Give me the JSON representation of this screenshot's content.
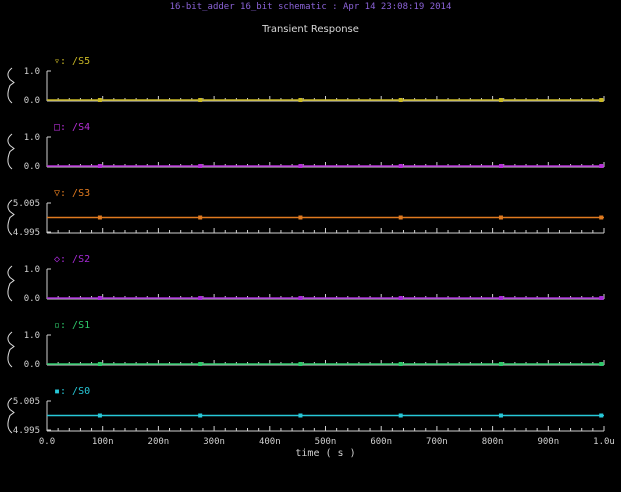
{
  "window": {
    "title": "16-bit_adder 16_bit schematic : Apr 14 23:08:19 2014",
    "subtitle": "Transient Response"
  },
  "colors": {
    "background": "#000000",
    "axis": "#d0d0d0",
    "title": "#8b63d8"
  },
  "chart_data": {
    "type": "line",
    "title": "Transient Response",
    "xlabel": "time ( s )",
    "x_ticks": [
      "0.0",
      "100n",
      "200n",
      "300n",
      "400n",
      "500n",
      "600n",
      "700n",
      "800n",
      "900n",
      "1.0u"
    ],
    "xlim": [
      0,
      1e-06
    ],
    "grid": false,
    "series": [
      {
        "name": "/S5",
        "marker_glyph": "▿",
        "color": "#c9b825",
        "y_ticks": [
          "1.0",
          "0.0"
        ],
        "ylim": [
          0,
          1
        ],
        "x": [
          0,
          1e-06
        ],
        "values": [
          0,
          0
        ]
      },
      {
        "name": "/S4",
        "marker_glyph": "□",
        "color": "#b52fd6",
        "y_ticks": [
          "1.0",
          "0.0"
        ],
        "ylim": [
          0,
          1
        ],
        "x": [
          0,
          1e-06
        ],
        "values": [
          0,
          0
        ]
      },
      {
        "name": "/S3",
        "marker_glyph": "▽",
        "color": "#e07a1f",
        "y_ticks": [
          "5.005",
          "4.995"
        ],
        "ylim": [
          4.995,
          5.005
        ],
        "x": [
          0,
          1e-06
        ],
        "values": [
          5.0,
          5.0
        ]
      },
      {
        "name": "/S2",
        "marker_glyph": "◇",
        "color": "#a62ad6",
        "y_ticks": [
          "1.0",
          "0.0"
        ],
        "ylim": [
          0,
          1
        ],
        "x": [
          0,
          1e-06
        ],
        "values": [
          0,
          0
        ]
      },
      {
        "name": "/S1",
        "marker_glyph": "▫",
        "color": "#2ec86a",
        "y_ticks": [
          "1.0",
          "0.0"
        ],
        "ylim": [
          0,
          1
        ],
        "x": [
          0,
          1e-06
        ],
        "values": [
          0,
          0
        ]
      },
      {
        "name": "/S0",
        "marker_glyph": "▪",
        "color": "#27c8d8",
        "y_ticks": [
          "5.005",
          "4.995"
        ],
        "ylim": [
          4.995,
          5.005
        ],
        "x": [
          0,
          1e-06
        ],
        "values": [
          5.0,
          5.0
        ]
      }
    ]
  }
}
